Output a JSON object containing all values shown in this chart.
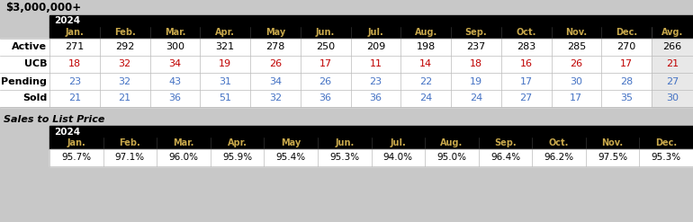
{
  "title": "$3,000,000+",
  "title_bg": "#c8c8c8",
  "header_bg": "#000000",
  "header_text_color": "#ffffff",
  "months": [
    "Jan.",
    "Feb.",
    "Mar.",
    "Apr.",
    "May",
    "Jun.",
    "Jul.",
    "Aug.",
    "Sep.",
    "Oct.",
    "Nov.",
    "Dec.",
    "Avg."
  ],
  "months_no_avg": [
    "Jan.",
    "Feb.",
    "Mar.",
    "Apr.",
    "May",
    "Jun.",
    "Jul.",
    "Aug.",
    "Sep.",
    "Oct.",
    "Nov.",
    "Dec."
  ],
  "year": "2024",
  "row_labels": [
    "Active",
    "UCB",
    "Pending",
    "Sold"
  ],
  "active": [
    271,
    292,
    300,
    321,
    278,
    250,
    209,
    198,
    237,
    283,
    285,
    270,
    266
  ],
  "ucb": [
    18,
    32,
    34,
    19,
    26,
    17,
    11,
    14,
    18,
    16,
    26,
    17,
    21
  ],
  "pending": [
    23,
    32,
    43,
    31,
    34,
    26,
    23,
    22,
    19,
    17,
    30,
    28,
    27
  ],
  "sold": [
    21,
    21,
    36,
    51,
    32,
    36,
    36,
    24,
    24,
    27,
    17,
    35,
    30
  ],
  "sales_to_list": [
    "95.7%",
    "97.1%",
    "96.0%",
    "95.9%",
    "95.4%",
    "95.3%",
    "94.0%",
    "95.0%",
    "96.4%",
    "96.2%",
    "97.5%",
    "95.3%"
  ],
  "sales_label": "Sales to List Price",
  "active_color": "#000000",
  "ucb_color": "#c00000",
  "pending_color": "#4472c4",
  "sold_color": "#4472c4",
  "avg_col_bg": "#e8e8e8",
  "row_bg": "#ffffff",
  "header_month_color": "#c8a84b",
  "fig_bg": "#c8c8c8"
}
